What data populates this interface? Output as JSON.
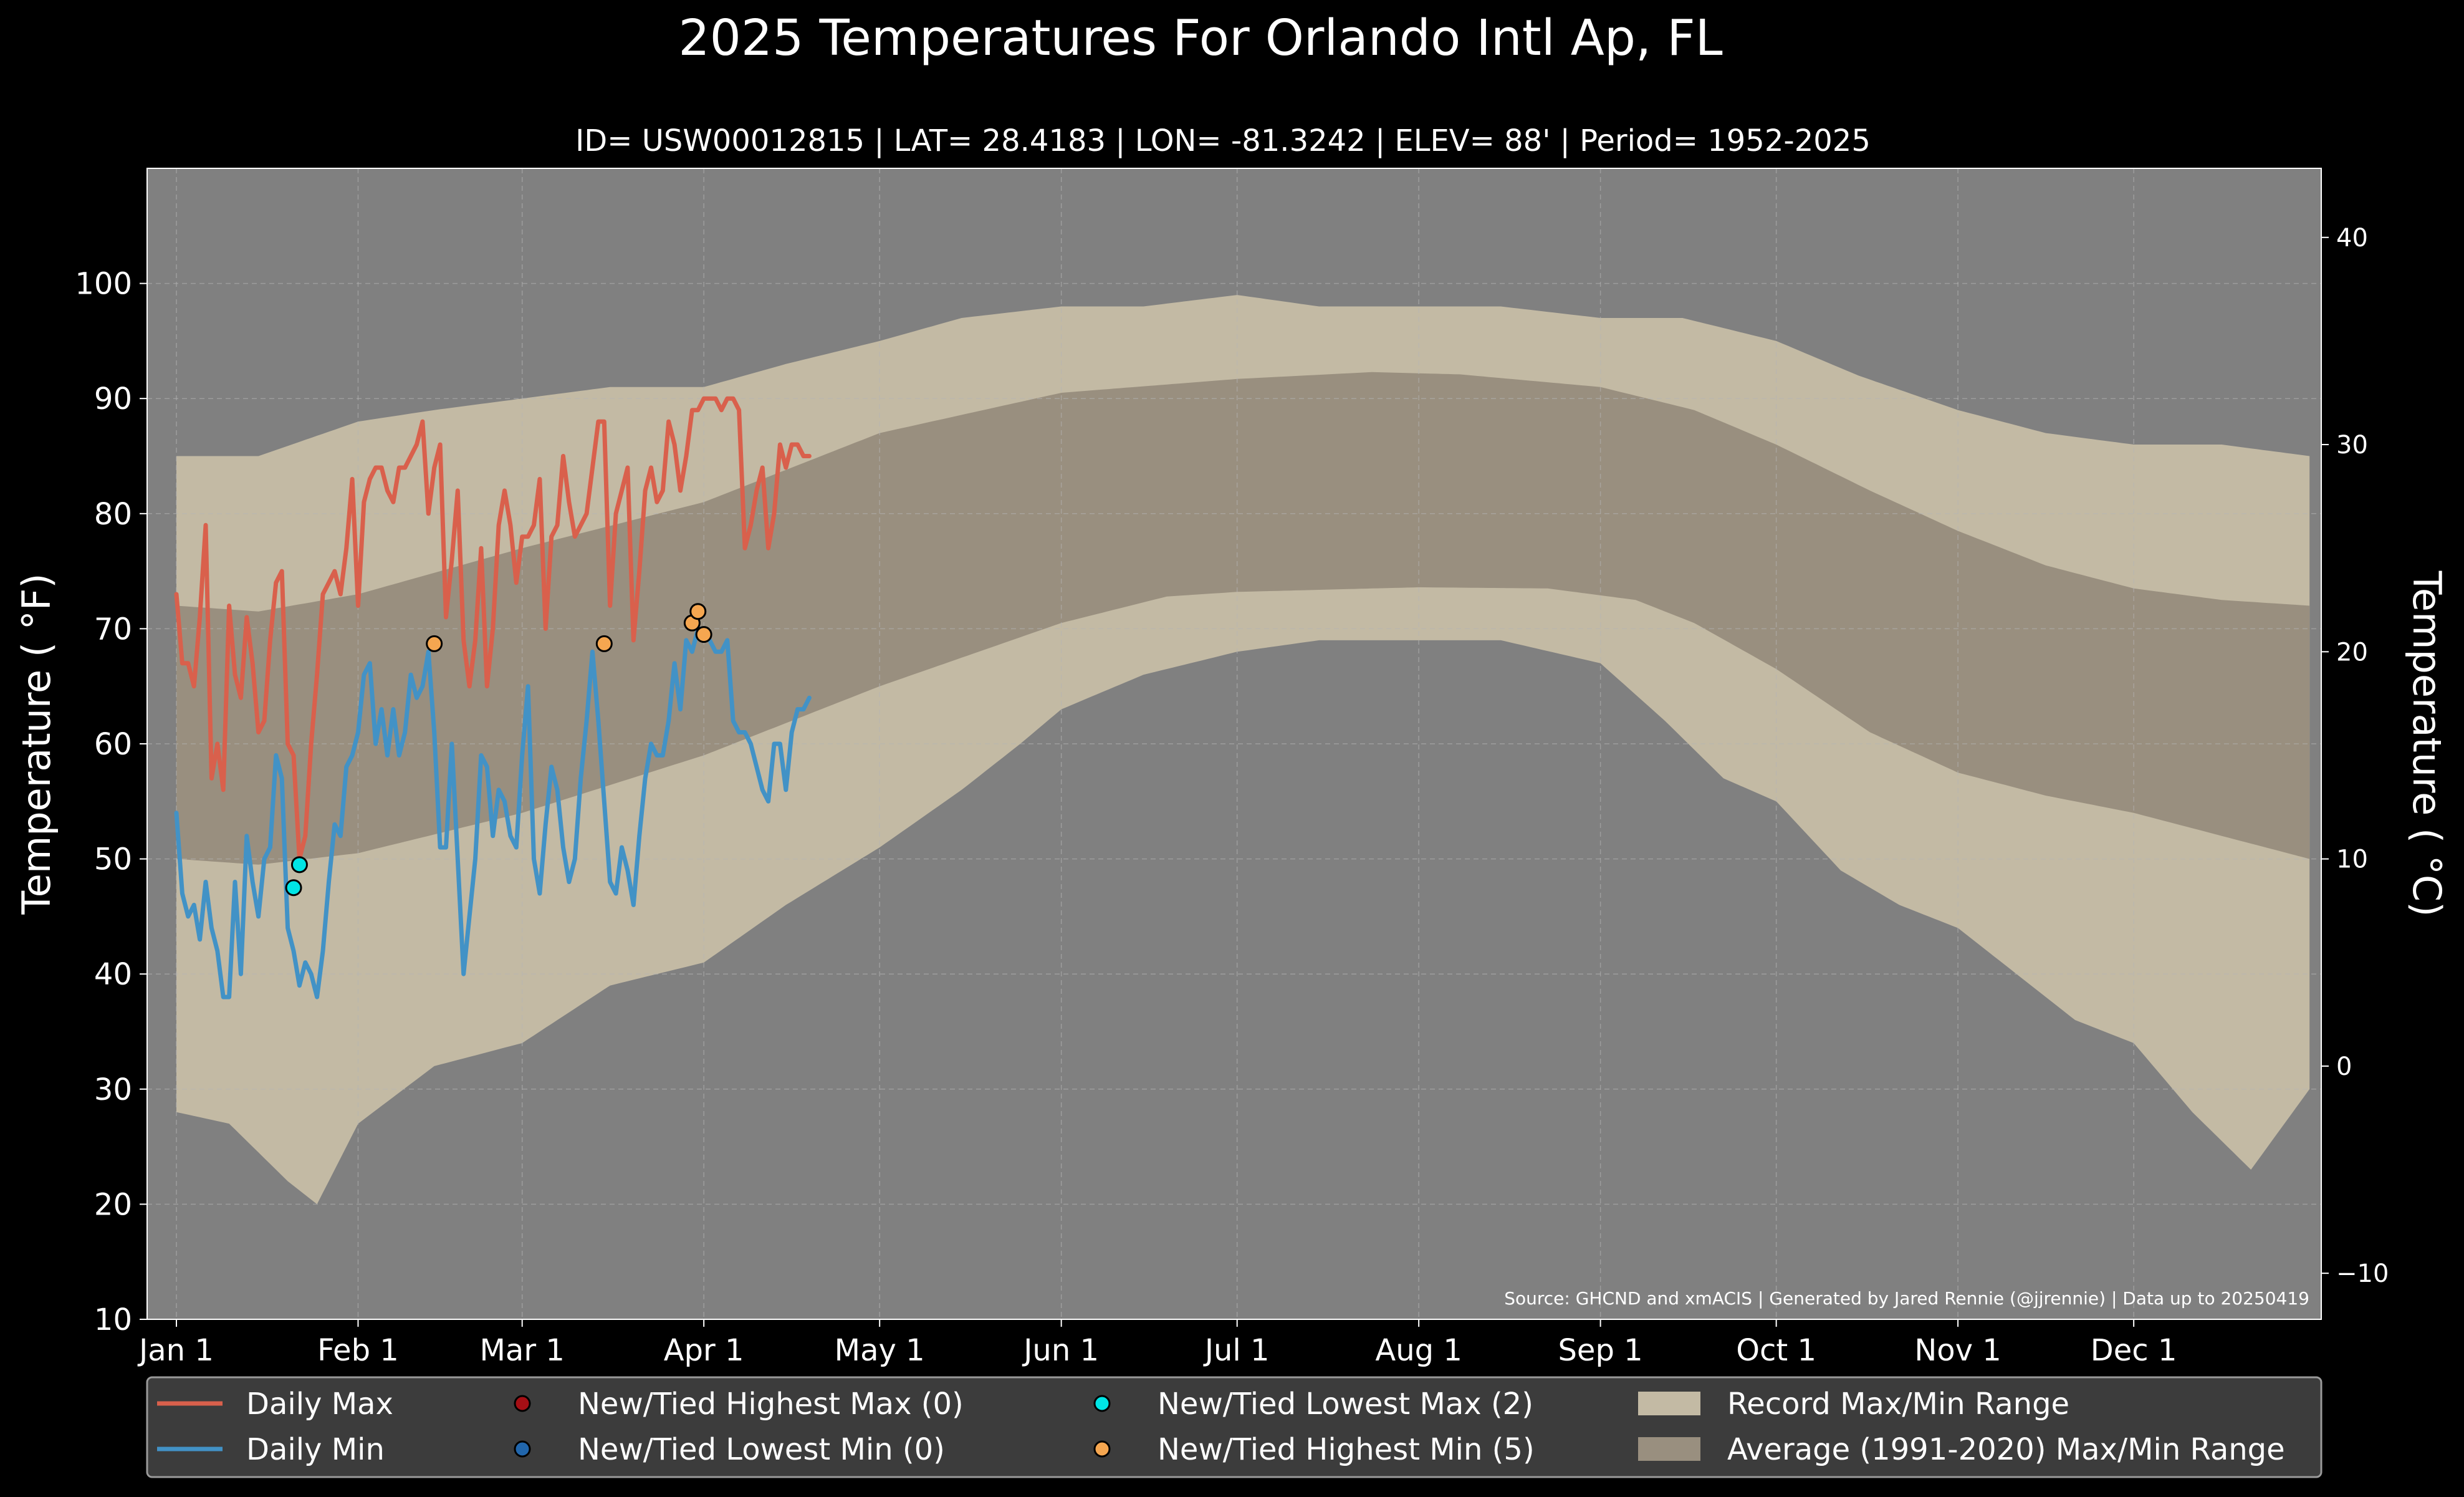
{
  "chart_data": {
    "type": "line",
    "title": "2025 Temperatures For Orlando Intl Ap, FL",
    "subtitle": "ID= USW00012815 | LAT= 28.4183 | LON= -81.3242 | ELEV= 88' | Period= 1952-2025",
    "ylabel": "Temperature ( °F)",
    "ylabel_right": "Temperature ( °C)",
    "source": "Source: GHCND and xmACIS | Generated by Jared Rennie (@jjrennie) | Data up to 20250419",
    "ylim": [
      10,
      110
    ],
    "yticks": [
      10,
      20,
      30,
      40,
      50,
      60,
      70,
      80,
      90,
      100
    ],
    "yticks_right": [
      -10,
      0,
      10,
      20,
      30,
      40
    ],
    "x_ticks": [
      {
        "label": "Jan 1",
        "day": 1
      },
      {
        "label": "Feb 1",
        "day": 32
      },
      {
        "label": "Mar 1",
        "day": 60
      },
      {
        "label": "Apr 1",
        "day": 91
      },
      {
        "label": "May 1",
        "day": 121
      },
      {
        "label": "Jun 1",
        "day": 152
      },
      {
        "label": "Jul 1",
        "day": 182
      },
      {
        "label": "Aug 1",
        "day": 213
      },
      {
        "label": "Sep 1",
        "day": 244
      },
      {
        "label": "Oct 1",
        "day": 274
      },
      {
        "label": "Nov 1",
        "day": 305
      },
      {
        "label": "Dec 1",
        "day": 335
      }
    ],
    "xlim": [
      -4,
      367
    ],
    "grid": true,
    "legend_position": "bottom",
    "record_range": {
      "name": "Record Max/Min Range",
      "max_anchors": [
        [
          1,
          85
        ],
        [
          15,
          85
        ],
        [
          32,
          88
        ],
        [
          45,
          89
        ],
        [
          60,
          90
        ],
        [
          75,
          91
        ],
        [
          91,
          91
        ],
        [
          105,
          93
        ],
        [
          121,
          95
        ],
        [
          135,
          97
        ],
        [
          152,
          98
        ],
        [
          166,
          98
        ],
        [
          182,
          99
        ],
        [
          196,
          98
        ],
        [
          213,
          98
        ],
        [
          227,
          98
        ],
        [
          244,
          97
        ],
        [
          258,
          97
        ],
        [
          274,
          95
        ],
        [
          288,
          92
        ],
        [
          305,
          89
        ],
        [
          320,
          87
        ],
        [
          335,
          86
        ],
        [
          350,
          86
        ],
        [
          365,
          85
        ]
      ],
      "min_anchors": [
        [
          1,
          28
        ],
        [
          10,
          27
        ],
        [
          20,
          22
        ],
        [
          25,
          20
        ],
        [
          32,
          27
        ],
        [
          45,
          32
        ],
        [
          60,
          34
        ],
        [
          75,
          39
        ],
        [
          91,
          41
        ],
        [
          105,
          46
        ],
        [
          121,
          51
        ],
        [
          135,
          56
        ],
        [
          145,
          60
        ],
        [
          152,
          63
        ],
        [
          166,
          66
        ],
        [
          182,
          68
        ],
        [
          196,
          69
        ],
        [
          213,
          69
        ],
        [
          227,
          69
        ],
        [
          244,
          67
        ],
        [
          255,
          62
        ],
        [
          265,
          57
        ],
        [
          274,
          55
        ],
        [
          285,
          49
        ],
        [
          295,
          46
        ],
        [
          305,
          44
        ],
        [
          315,
          40
        ],
        [
          325,
          36
        ],
        [
          335,
          34
        ],
        [
          345,
          28
        ],
        [
          355,
          23
        ],
        [
          365,
          30
        ]
      ],
      "color": "#c3baa4"
    },
    "average_range": {
      "name": "Average (1991-2020) Max/Min Range",
      "max_anchors": [
        [
          1,
          72
        ],
        [
          15,
          71.5
        ],
        [
          32,
          73
        ],
        [
          60,
          77
        ],
        [
          91,
          81
        ],
        [
          121,
          87
        ],
        [
          152,
          90.5
        ],
        [
          182,
          91.7
        ],
        [
          205,
          92.3
        ],
        [
          220,
          92.1
        ],
        [
          244,
          91
        ],
        [
          260,
          89
        ],
        [
          274,
          86
        ],
        [
          290,
          82
        ],
        [
          305,
          78.5
        ],
        [
          320,
          75.5
        ],
        [
          335,
          73.5
        ],
        [
          350,
          72.5
        ],
        [
          365,
          72
        ]
      ],
      "min_anchors": [
        [
          1,
          50
        ],
        [
          15,
          49.5
        ],
        [
          32,
          50.5
        ],
        [
          60,
          54
        ],
        [
          91,
          59
        ],
        [
          121,
          65
        ],
        [
          152,
          70.5
        ],
        [
          170,
          72.8
        ],
        [
          182,
          73.2
        ],
        [
          213,
          73.6
        ],
        [
          235,
          73.5
        ],
        [
          250,
          72.5
        ],
        [
          260,
          70.5
        ],
        [
          274,
          66.5
        ],
        [
          290,
          61
        ],
        [
          305,
          57.5
        ],
        [
          320,
          55.5
        ],
        [
          335,
          54
        ],
        [
          350,
          52
        ],
        [
          365,
          50
        ]
      ],
      "color": "#998f7f"
    },
    "series": [
      {
        "name": "Daily Max",
        "color": "#d9604c",
        "x": [
          1,
          2,
          3,
          4,
          5,
          6,
          7,
          8,
          9,
          10,
          11,
          12,
          13,
          14,
          15,
          16,
          17,
          18,
          19,
          20,
          21,
          22,
          23,
          24,
          25,
          26,
          27,
          28,
          29,
          30,
          31,
          32,
          33,
          34,
          35,
          36,
          37,
          38,
          39,
          40,
          41,
          42,
          43,
          44,
          45,
          46,
          47,
          48,
          49,
          50,
          51,
          52,
          53,
          54,
          55,
          56,
          57,
          58,
          59,
          60,
          61,
          62,
          63,
          64,
          65,
          66,
          67,
          68,
          69,
          70,
          71,
          72,
          73,
          74,
          75,
          76,
          77,
          78,
          79,
          80,
          81,
          82,
          83,
          84,
          85,
          86,
          87,
          88,
          89,
          90,
          91,
          92,
          93,
          94,
          95,
          96,
          97,
          98,
          99,
          100,
          101,
          102,
          103,
          104,
          105,
          106,
          107,
          108,
          109
        ],
        "y": [
          73,
          67,
          67,
          65,
          71,
          79,
          57,
          60,
          56,
          72,
          66,
          64,
          71,
          67,
          61,
          62,
          69,
          74,
          75,
          60,
          59,
          50,
          52,
          60,
          66,
          73,
          74,
          75,
          73,
          77,
          83,
          72,
          81,
          83,
          84,
          84,
          82,
          81,
          84,
          84,
          85,
          86,
          88,
          80,
          84,
          86,
          71,
          76,
          82,
          69,
          65,
          69,
          77,
          65,
          70,
          79,
          82,
          79,
          74,
          78,
          78,
          79,
          83,
          70,
          78,
          79,
          85,
          81,
          78,
          79,
          80,
          84,
          88,
          88,
          72,
          80,
          82,
          84,
          69,
          75,
          82,
          84,
          81,
          82,
          88,
          86,
          82,
          85,
          89,
          89,
          90,
          90,
          90,
          89,
          90,
          90,
          89,
          77,
          79,
          82,
          84,
          77,
          80,
          86,
          84,
          86,
          86,
          85,
          85
        ]
      },
      {
        "name": "Daily Min",
        "color": "#4292c6",
        "x": [
          1,
          2,
          3,
          4,
          5,
          6,
          7,
          8,
          9,
          10,
          11,
          12,
          13,
          14,
          15,
          16,
          17,
          18,
          19,
          20,
          21,
          22,
          23,
          24,
          25,
          26,
          27,
          28,
          29,
          30,
          31,
          32,
          33,
          34,
          35,
          36,
          37,
          38,
          39,
          40,
          41,
          42,
          43,
          44,
          45,
          46,
          47,
          48,
          49,
          50,
          51,
          52,
          53,
          54,
          55,
          56,
          57,
          58,
          59,
          60,
          61,
          62,
          63,
          64,
          65,
          66,
          67,
          68,
          69,
          70,
          71,
          72,
          73,
          74,
          75,
          76,
          77,
          78,
          79,
          80,
          81,
          82,
          83,
          84,
          85,
          86,
          87,
          88,
          89,
          90,
          91,
          92,
          93,
          94,
          95,
          96,
          97,
          98,
          99,
          100,
          101,
          102,
          103,
          104,
          105,
          106,
          107,
          108,
          109
        ],
        "y": [
          54,
          47,
          45,
          46,
          43,
          48,
          44,
          42,
          38,
          38,
          48,
          40,
          52,
          48,
          45,
          50,
          51,
          59,
          57,
          44,
          42,
          39,
          41,
          40,
          38,
          42,
          48,
          53,
          52,
          58,
          59,
          61,
          66,
          67,
          60,
          63,
          59,
          63,
          59,
          61,
          66,
          64,
          65,
          68,
          61,
          51,
          51,
          60,
          50,
          40,
          45,
          50,
          59,
          58,
          52,
          56,
          55,
          52,
          51,
          59,
          65,
          50,
          47,
          53,
          58,
          56,
          51,
          48,
          50,
          57,
          62,
          68,
          62,
          55,
          48,
          47,
          51,
          49,
          46,
          52,
          57,
          60,
          59,
          59,
          62,
          67,
          63,
          69,
          68,
          70,
          70,
          69,
          68,
          68,
          69,
          62,
          61,
          61,
          60,
          58,
          56,
          55,
          60,
          60,
          56,
          61,
          63,
          63,
          64
        ]
      }
    ],
    "markers": [
      {
        "name": "New/Tied Highest Max (0)",
        "color": "#a50f15",
        "points": []
      },
      {
        "name": "New/Tied Lowest Min (0)",
        "color": "#2166ac",
        "points": []
      },
      {
        "name": "New/Tied Lowest Max (2)",
        "color": "#00e5e5",
        "points": [
          [
            21,
            47.5
          ],
          [
            22,
            49.5
          ]
        ]
      },
      {
        "name": "New/Tied Highest Min (5)",
        "color": "#f5a650",
        "points": [
          [
            45,
            68.7
          ],
          [
            74,
            68.7
          ],
          [
            89,
            70.5
          ],
          [
            90,
            71.5
          ],
          [
            91,
            69.5
          ]
        ]
      }
    ]
  },
  "legend": [
    {
      "label": "Daily Max",
      "kind": "line",
      "color": "#d9604c"
    },
    {
      "label": "Daily Min",
      "kind": "line",
      "color": "#4292c6"
    },
    {
      "label": "New/Tied Highest Max (0)",
      "kind": "dot",
      "color": "#a50f15"
    },
    {
      "label": "New/Tied Lowest Min (0)",
      "kind": "dot",
      "color": "#2166ac"
    },
    {
      "label": "New/Tied Lowest Max (2)",
      "kind": "dot",
      "color": "#00e5e5"
    },
    {
      "label": "New/Tied Highest Min (5)",
      "kind": "dot",
      "color": "#f5a650"
    },
    {
      "label": "Record Max/Min Range",
      "kind": "patch",
      "color": "#c3baa4"
    },
    {
      "label": "Average (1991-2020) Max/Min Range",
      "kind": "patch",
      "color": "#998f7f"
    }
  ]
}
